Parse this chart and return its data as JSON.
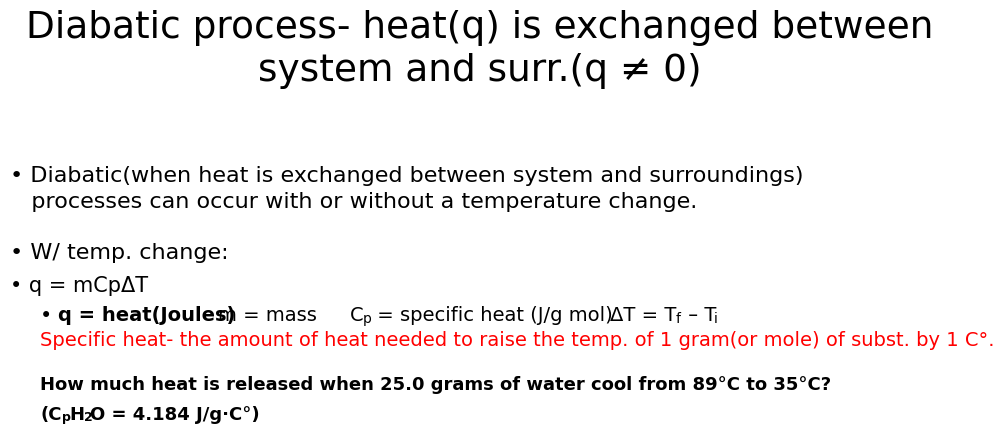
{
  "bg_color": "#ffffff",
  "title_line1": "Diabatic process- heat(q) is exchanged between",
  "title_line2": "system and surr.(q ≠ 0)",
  "title_fontsize": 27,
  "body_fontsize": 16,
  "small_fontsize": 11,
  "red_line": "Specific heat- the amount of heat needed to raise the temp. of 1 gram(or mole) of subst. by 1 C°.",
  "question_line1": "How much heat is released when 25.0 grams of water cool from 89°C to 35°C?",
  "bullet1_l1": "Diabatic(when heat is exchanged between system and surroundings)",
  "bullet1_l2": "processes can occur with or without a temperature change.",
  "bullet2": "W/ temp. change:",
  "bullet3": "q = mCpΔT"
}
